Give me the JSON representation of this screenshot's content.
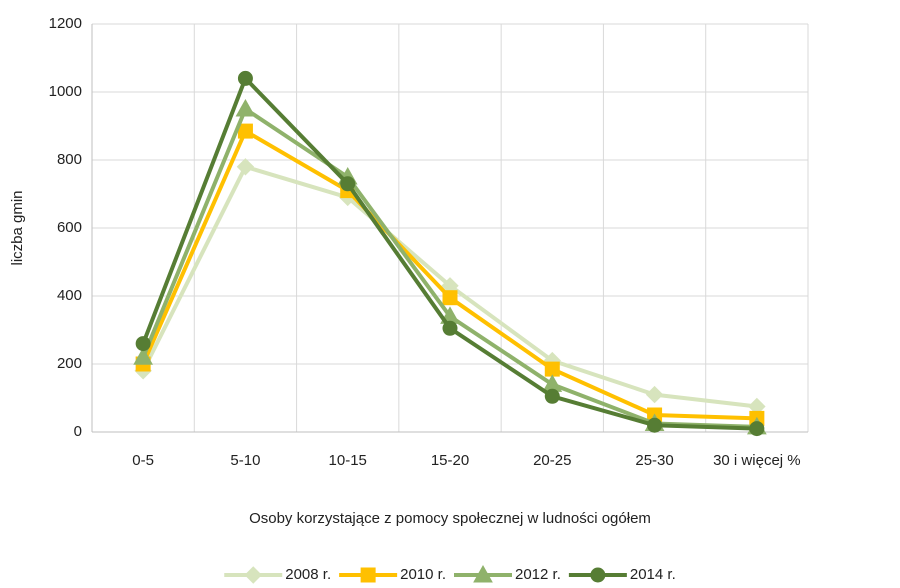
{
  "chart_data": {
    "type": "line",
    "categories": [
      "0-5",
      "5-10",
      "10-15",
      "15-20",
      "20-25",
      "25-30",
      "30 i więcej %"
    ],
    "x_label": "Osoby korzystające z pomocy społecznej w ludności ogółem",
    "y_label": "liczba gmin",
    "ylim": [
      0,
      1200
    ],
    "yticks": [
      0,
      200,
      400,
      600,
      800,
      1000,
      1200
    ],
    "grid": true,
    "legend": "bottom",
    "series": [
      {
        "name": "2008 r.",
        "color": "#d7e4bd",
        "marker": "diamond",
        "values": [
          180,
          780,
          690,
          430,
          210,
          110,
          75
        ]
      },
      {
        "name": "2010 r.",
        "color": "#ffc000",
        "marker": "square",
        "values": [
          200,
          885,
          710,
          395,
          185,
          50,
          40
        ]
      },
      {
        "name": "2012 r.",
        "color": "#8fb26b",
        "marker": "triangle",
        "values": [
          220,
          950,
          750,
          340,
          140,
          25,
          15
        ]
      },
      {
        "name": "2014 r.",
        "color": "#567d34",
        "marker": "circle",
        "values": [
          260,
          1040,
          730,
          305,
          105,
          20,
          10
        ]
      }
    ]
  }
}
